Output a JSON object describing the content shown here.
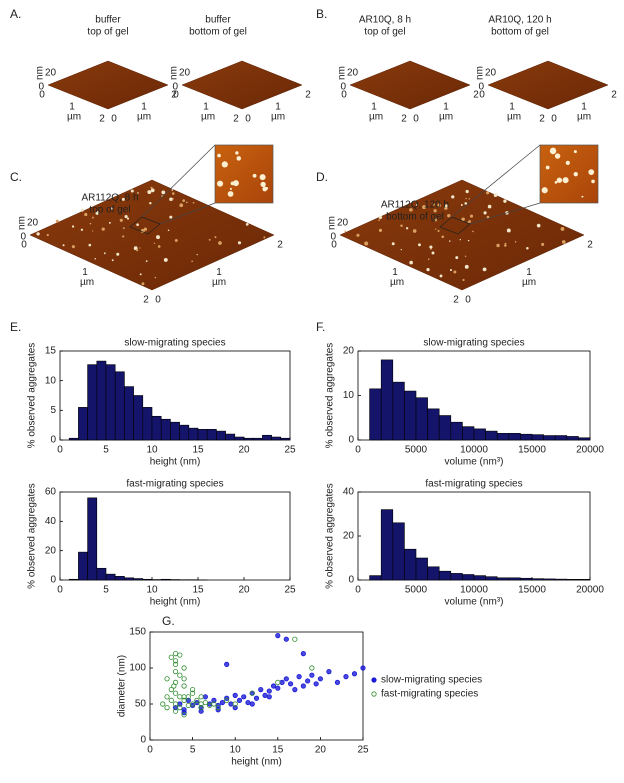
{
  "panel_labels": [
    "A.",
    "B.",
    "C.",
    "D.",
    "E.",
    "F.",
    "G."
  ],
  "afm_images": [
    {
      "caption": [
        "buffer",
        "top of gel"
      ],
      "z_label": "nm",
      "z_ticks": [
        20,
        0
      ],
      "x_label": "µm",
      "x_ticks": [
        0,
        1,
        2
      ],
      "y_label": "µm",
      "y_ticks": [
        0,
        1,
        2
      ],
      "inset": false
    },
    {
      "caption": [
        "buffer",
        "bottom of gel"
      ],
      "z_label": "nm",
      "z_ticks": [
        20,
        0
      ],
      "x_label": "µm",
      "x_ticks": [
        0,
        1,
        2
      ],
      "y_label": "µm",
      "y_ticks": [
        0,
        1,
        2
      ],
      "inset": false
    },
    {
      "caption": [
        "AR10Q, 8 h",
        "top of gel"
      ],
      "z_label": "nm",
      "z_ticks": [
        20,
        0
      ],
      "x_label": "µm",
      "x_ticks": [
        0,
        1,
        2
      ],
      "y_label": "µm",
      "y_ticks": [
        0,
        1,
        2
      ],
      "inset": false
    },
    {
      "caption": [
        "AR10Q, 120 h",
        "bottom of gel"
      ],
      "z_label": "nm",
      "z_ticks": [
        20,
        0
      ],
      "x_label": "µm",
      "x_ticks": [
        0,
        1,
        2
      ],
      "y_label": "µm",
      "y_ticks": [
        0,
        1,
        2
      ],
      "inset": false
    },
    {
      "caption": [
        "AR112Q, 8 h",
        "top of gel"
      ],
      "z_label": "nm",
      "z_ticks": [
        20,
        0
      ],
      "x_label": "µm",
      "x_ticks": [
        0,
        1,
        2
      ],
      "y_label": "µm",
      "y_ticks": [
        0,
        1,
        2
      ],
      "inset": true
    },
    {
      "caption": [
        "AR112Q, 120 h",
        "bottom of gel"
      ],
      "z_label": "nm",
      "z_ticks": [
        20,
        0
      ],
      "x_label": "µm",
      "x_ticks": [
        0,
        1,
        2
      ],
      "y_label": "µm",
      "y_ticks": [
        0,
        1,
        2
      ],
      "inset": true
    }
  ],
  "chart_data": [
    {
      "type": "histogram",
      "title": "slow-migrating species",
      "x_label": "height (nm)",
      "y_label": "% observed aggregates",
      "color": "#14146b",
      "bins": [
        1,
        2,
        3,
        4,
        5,
        6,
        7,
        8,
        9,
        10,
        11,
        12,
        13,
        14,
        15,
        16,
        17,
        18,
        19,
        20,
        21,
        22,
        23,
        24,
        25
      ],
      "counts": [
        0.3,
        5.5,
        12.7,
        13.3,
        12.7,
        11.5,
        9,
        7.5,
        5.5,
        4,
        3.5,
        3,
        2.5,
        2,
        1.8,
        1.8,
        1.5,
        1,
        0.5,
        0.3,
        0.3,
        0.8,
        0.5,
        0.3
      ],
      "xlim": [
        0,
        25
      ],
      "ylim": [
        0,
        15
      ],
      "xticks": [
        0,
        5,
        10,
        15,
        20,
        25
      ],
      "yticks": [
        0,
        5,
        10,
        15
      ]
    },
    {
      "type": "histogram",
      "title": "fast-migrating species",
      "x_label": "height (nm)",
      "y_label": "% observed aggregates",
      "color": "#14146b",
      "bins": [
        1,
        2,
        3,
        4,
        5,
        6,
        7,
        8,
        9,
        10,
        11,
        12,
        13,
        14,
        15,
        16
      ],
      "counts": [
        0.5,
        19,
        56,
        8,
        4,
        2.5,
        1.5,
        1,
        0.5,
        0.3,
        0.5,
        0.3,
        0.2,
        0.2,
        0.1
      ],
      "xlim": [
        0,
        25
      ],
      "ylim": [
        0,
        60
      ],
      "xticks": [
        0,
        5,
        10,
        15,
        20,
        25
      ],
      "yticks": [
        0,
        20,
        40,
        60
      ]
    },
    {
      "type": "histogram",
      "title": "slow-migrating species",
      "x_label": "volume (nm³)",
      "y_label": "% observed aggregates",
      "color": "#14146b",
      "bins": [
        1000,
        2000,
        3000,
        4000,
        5000,
        6000,
        7000,
        8000,
        9000,
        10000,
        11000,
        12000,
        13000,
        14000,
        15000,
        16000,
        17000,
        18000,
        19000,
        20000
      ],
      "counts": [
        11.5,
        18,
        13,
        11,
        9.5,
        7,
        5.5,
        4,
        3,
        2.5,
        2,
        1.5,
        1.5,
        1.3,
        1.2,
        1,
        1,
        0.8,
        0.5
      ],
      "xlim": [
        0,
        20000
      ],
      "ylim": [
        0,
        20
      ],
      "xticks": [
        0,
        5000,
        10000,
        15000,
        20000
      ],
      "yticks": [
        0,
        10,
        20
      ]
    },
    {
      "type": "histogram",
      "title": "fast-migrating species",
      "x_label": "volume (nm³)",
      "y_label": "% observed aggregates",
      "color": "#14146b",
      "bins": [
        1000,
        2000,
        3000,
        4000,
        5000,
        6000,
        7000,
        8000,
        9000,
        10000,
        11000,
        12000,
        13000,
        14000,
        15000,
        16000,
        17000,
        18000,
        19000,
        20000
      ],
      "counts": [
        2,
        32,
        26,
        14,
        10,
        6,
        4,
        3,
        2.5,
        2,
        1.5,
        1,
        1,
        0.8,
        0.6,
        0.5,
        0.4,
        0.3,
        0.3
      ],
      "xlim": [
        0,
        20000
      ],
      "ylim": [
        0,
        40
      ],
      "xticks": [
        0,
        5000,
        10000,
        15000,
        20000
      ],
      "yticks": [
        0,
        20,
        40
      ]
    },
    {
      "type": "scatter",
      "x_label": "height (nm)",
      "y_label": "diameter (nm)",
      "legend": "right",
      "xlim": [
        0,
        25
      ],
      "ylim": [
        0,
        150
      ],
      "xticks": [
        0,
        5,
        10,
        15,
        20,
        25
      ],
      "yticks": [
        0,
        50,
        100,
        150
      ],
      "series": [
        {
          "name": "slow-migrating species",
          "color": "#1a1ad8",
          "x": [
            3,
            3.5,
            4,
            4.5,
            5,
            5.5,
            6,
            6.5,
            7,
            7.5,
            8,
            8.5,
            9,
            9.5,
            10,
            10.5,
            11,
            11.5,
            12,
            12.5,
            13,
            13.5,
            14,
            14.5,
            15,
            15.5,
            16,
            16.5,
            17,
            17.5,
            18,
            18.5,
            19,
            19.5,
            20,
            21,
            22,
            23,
            24,
            25,
            4,
            6,
            8,
            10,
            12,
            14,
            16,
            18,
            9,
            15
          ],
          "y": [
            45,
            50,
            42,
            55,
            48,
            52,
            45,
            60,
            50,
            55,
            48,
            52,
            58,
            50,
            62,
            55,
            60,
            52,
            65,
            58,
            70,
            62,
            68,
            75,
            72,
            80,
            85,
            78,
            70,
            88,
            75,
            82,
            90,
            78,
            85,
            95,
            80,
            88,
            92,
            100,
            38,
            40,
            42,
            45,
            50,
            60,
            140,
            120,
            105,
            145
          ]
        },
        {
          "name": "fast-migrating species",
          "color": "#2e8b2e",
          "x": [
            1.5,
            2,
            2,
            2.5,
            2.5,
            3,
            3,
            3,
            3,
            3.5,
            3.5,
            3.5,
            4,
            4,
            4,
            4.5,
            4.5,
            5,
            5,
            5.5,
            6,
            6,
            6.5,
            7,
            7.5,
            8,
            2.5,
            3,
            3.5,
            4,
            2,
            3,
            4,
            5,
            3,
            4,
            6,
            9,
            10,
            12,
            15,
            17,
            19,
            3,
            2.8
          ],
          "y": [
            50,
            60,
            45,
            70,
            55,
            80,
            65,
            50,
            110,
            90,
            60,
            45,
            75,
            55,
            100,
            60,
            48,
            65,
            50,
            55,
            50,
            45,
            52,
            48,
            50,
            45,
            115,
            40,
            118,
            35,
            85,
            95,
            85,
            70,
            105,
            60,
            60,
            55,
            50,
            65,
            80,
            140,
            100,
            120,
            75
          ]
        }
      ]
    }
  ]
}
